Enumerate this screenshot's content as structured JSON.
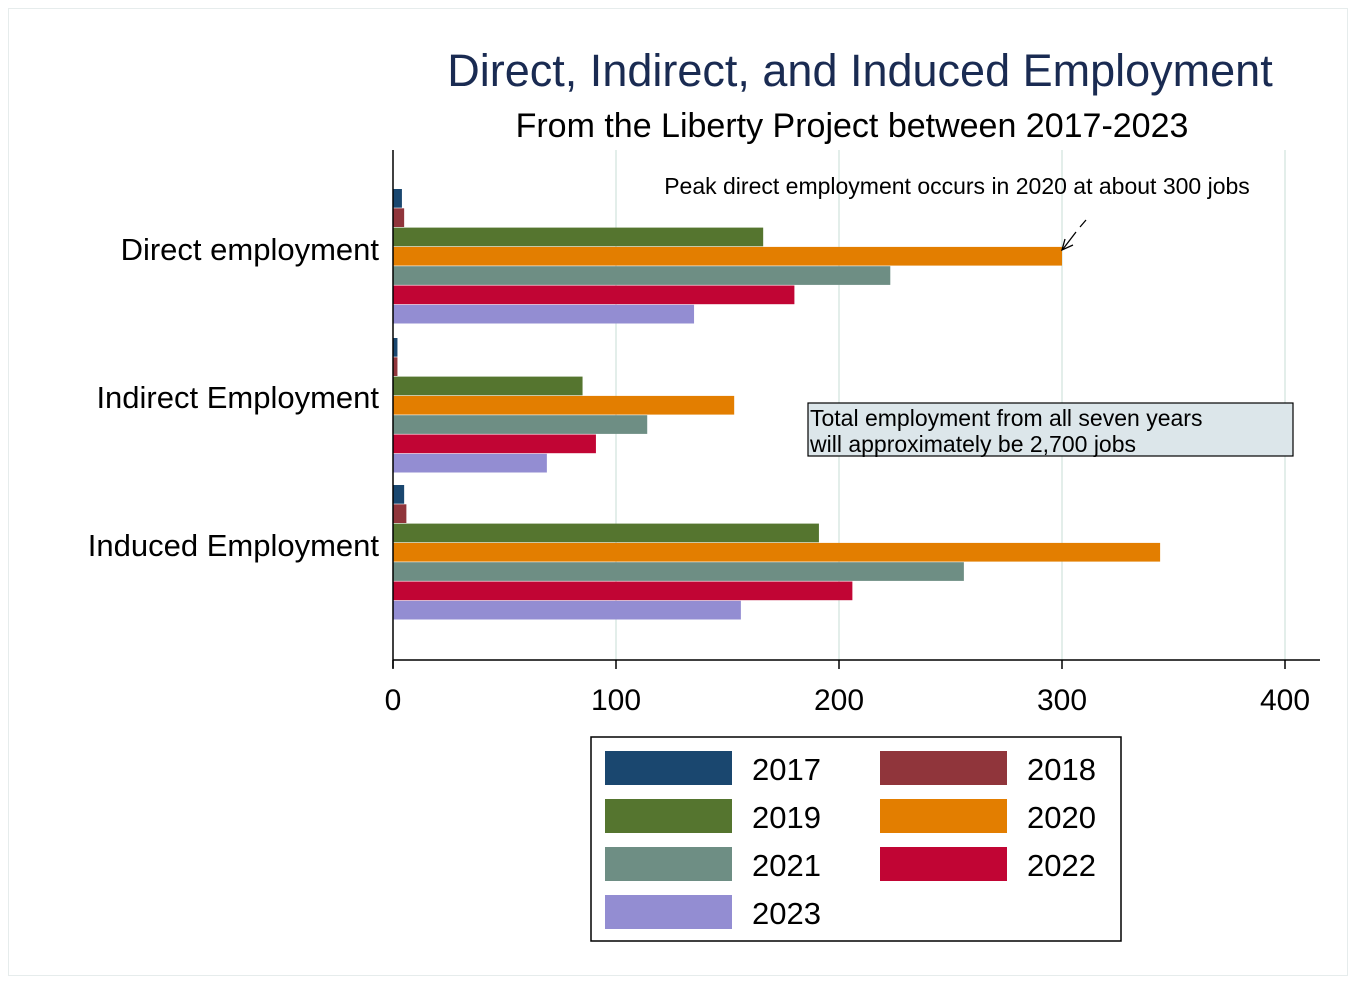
{
  "chart_data": {
    "type": "bar",
    "orientation": "horizontal",
    "title": "Direct, Indirect, and Induced Employment",
    "subtitle": "From the Liberty Project between 2017-2023",
    "xlabel": "",
    "ylabel": "",
    "xlim": [
      0,
      415
    ],
    "xticks": [
      0,
      100,
      200,
      300,
      400
    ],
    "grid": true,
    "legend_position": "bottom",
    "categories": [
      "Direct employment",
      "Indirect Employment",
      "Induced Employment"
    ],
    "series": [
      {
        "name": "2017",
        "color": "#1a476f",
        "values": [
          4,
          2,
          5
        ]
      },
      {
        "name": "2018",
        "color": "#90353b",
        "values": [
          5,
          2,
          6
        ]
      },
      {
        "name": "2019",
        "color": "#55752f",
        "values": [
          166,
          85,
          191
        ]
      },
      {
        "name": "2020",
        "color": "#e37e00",
        "values": [
          300,
          153,
          344
        ]
      },
      {
        "name": "2021",
        "color": "#6e8e84",
        "values": [
          223,
          114,
          256
        ]
      },
      {
        "name": "2022",
        "color": "#c10534",
        "values": [
          180,
          91,
          206
        ]
      },
      {
        "name": "2023",
        "color": "#938dd2",
        "values": [
          135,
          69,
          156
        ]
      }
    ],
    "annotations": [
      {
        "text": "Peak direct employment occurs in 2020 at about 300 jobs",
        "arrow_to": {
          "category": "Direct employment",
          "series": "2020",
          "value": 300
        }
      },
      {
        "text_lines": [
          "Total employment from all seven years",
          " will approximately be 2,700 jobs"
        ],
        "boxed": true,
        "box_fill": "#dce6ea"
      }
    ]
  }
}
